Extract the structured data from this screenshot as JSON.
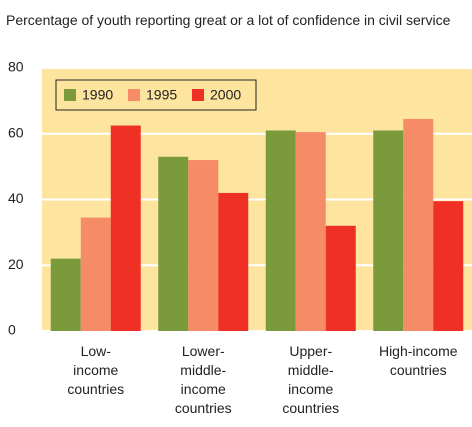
{
  "chart_data": {
    "type": "bar",
    "title": "Percentage of youth reporting great or a lot of confidence in civil service",
    "categories": [
      "Low-\nincome\ncountries",
      "Lower-\nmiddle-\nincome\ncountries",
      "Upper-\nmiddle-\nincome\ncountries",
      "High-income\ncountries"
    ],
    "series": [
      {
        "name": "1990",
        "color": "#7b9a3c",
        "values": [
          22,
          53,
          61,
          61
        ]
      },
      {
        "name": "1995",
        "color": "#f68b67",
        "values": [
          34.5,
          52,
          60.5,
          64.5
        ]
      },
      {
        "name": "2000",
        "color": "#ee3124",
        "values": [
          62.5,
          42,
          32,
          39.5
        ]
      }
    ],
    "ylim": [
      0,
      80
    ],
    "yticks": [
      0,
      20,
      40,
      60,
      80
    ],
    "grid": true,
    "legend": "top-left"
  }
}
